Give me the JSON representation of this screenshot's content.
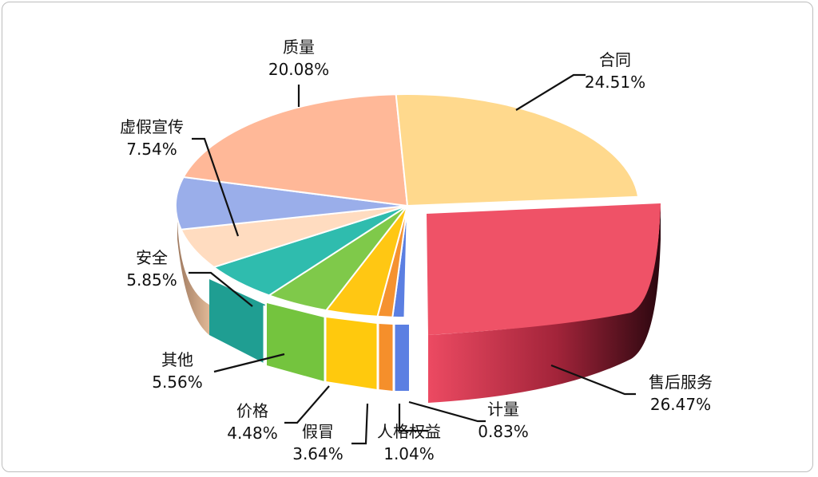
{
  "chart_data": {
    "type": "pie",
    "style": "3d-exploded",
    "slices": [
      {
        "name": "售后服务",
        "value": 26.47,
        "label": "26.47%",
        "color": "#ef5267",
        "exploded": true
      },
      {
        "name": "计量",
        "value": 0.83,
        "label": "0.83%",
        "color": "#5b7fe2"
      },
      {
        "name": "人格权益",
        "value": 1.04,
        "label": "1.04%",
        "color": "#f59230"
      },
      {
        "name": "假冒",
        "value": 3.64,
        "label": "3.64%",
        "color": "#ffc713"
      },
      {
        "name": "价格",
        "value": 4.48,
        "label": "4.48%",
        "color": "#7fc94a"
      },
      {
        "name": "其他",
        "value": 5.56,
        "label": "5.56%",
        "color": "#2fbcae"
      },
      {
        "name": "安全",
        "value": 5.85,
        "label": "5.85%",
        "color": "#ffdcc0"
      },
      {
        "name": "虚假宣传",
        "value": 7.54,
        "label": "7.54%",
        "color": "#9aaeea"
      },
      {
        "name": "质量",
        "value": 20.08,
        "label": "20.08%",
        "color": "#ffb898"
      },
      {
        "name": "合同",
        "value": 24.51,
        "label": "24.51%",
        "color": "#ffd98d"
      }
    ],
    "legend": "none"
  }
}
